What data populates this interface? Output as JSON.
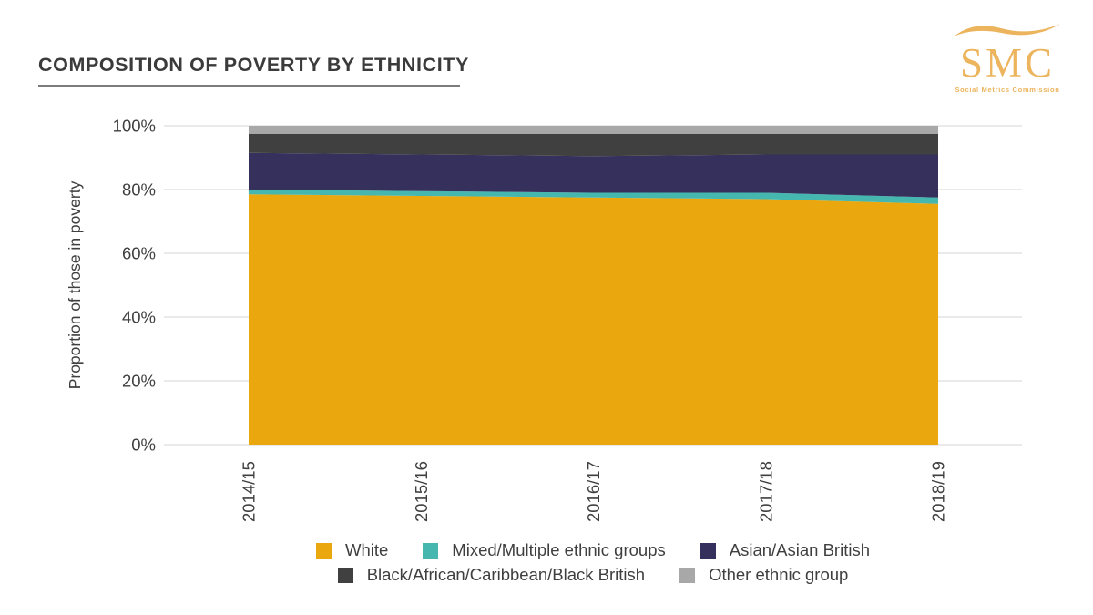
{
  "header": {
    "title": "COMPOSITION OF POVERTY BY ETHNICITY",
    "logo": {
      "acronym": "SMC",
      "subtitle": "Social Metrics Commission",
      "color": "#ecb45c"
    }
  },
  "chart_data": {
    "type": "area",
    "stacked": true,
    "title": "COMPOSITION OF POVERTY BY ETHNICITY",
    "xlabel": "",
    "ylabel": "Proportion of those in poverty",
    "categories": [
      "2014/15",
      "2015/16",
      "2016/17",
      "2017/18",
      "2018/19"
    ],
    "series": [
      {
        "name": "White",
        "color": "#eaa70e",
        "values": [
          78.5,
          78.0,
          77.5,
          77.0,
          75.5
        ]
      },
      {
        "name": "Mixed/Multiple ethnic groups",
        "color": "#45b7af",
        "values": [
          1.5,
          1.5,
          1.5,
          2.0,
          2.0
        ]
      },
      {
        "name": "Asian/Asian British",
        "color": "#35315c",
        "values": [
          11.5,
          11.5,
          11.5,
          12.0,
          13.5
        ]
      },
      {
        "name": "Black/African/Caribbean/Black British",
        "color": "#404040",
        "values": [
          6.0,
          6.5,
          7.0,
          6.5,
          6.5
        ]
      },
      {
        "name": "Other ethnic group",
        "color": "#a8a8a8",
        "values": [
          2.5,
          2.5,
          2.5,
          2.5,
          2.5
        ]
      }
    ],
    "y_ticks": [
      {
        "value": 0,
        "label": "0%"
      },
      {
        "value": 20,
        "label": "20%"
      },
      {
        "value": 40,
        "label": "40%"
      },
      {
        "value": 60,
        "label": "60%"
      },
      {
        "value": 80,
        "label": "80%"
      },
      {
        "value": 100,
        "label": "100%"
      }
    ],
    "ylim": [
      0,
      100
    ],
    "grid": "horizontal",
    "legend_position": "bottom",
    "legend_rows": [
      [
        0,
        1,
        2
      ],
      [
        3,
        4
      ]
    ]
  },
  "theme": {
    "grid_color": "#dedede",
    "axis_text_color": "#3f3f3f",
    "background": "#ffffff"
  }
}
